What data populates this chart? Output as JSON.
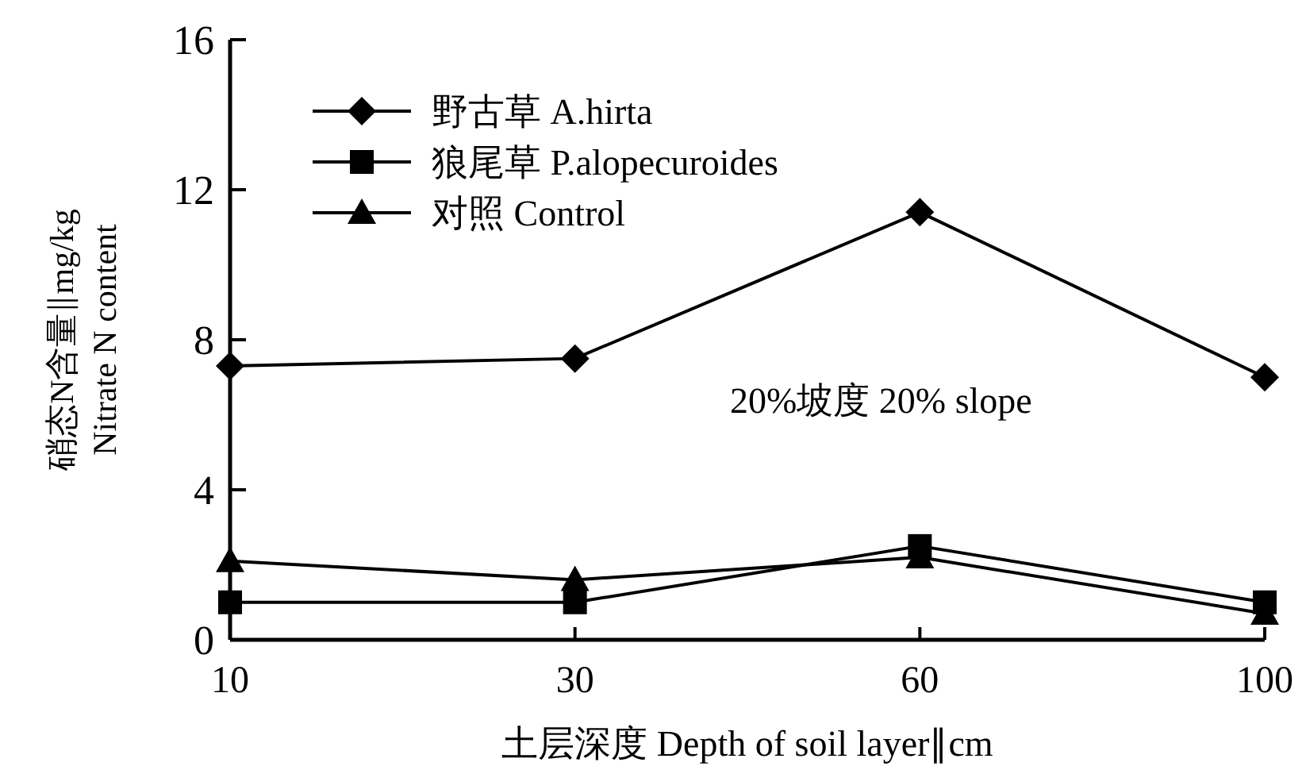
{
  "chart_data": {
    "type": "line",
    "xlabel": "土层深度 Depth of soil layer∥cm",
    "ylabel": [
      "硝态N含量∥mg/kg",
      "Nitrate N content"
    ],
    "categories": [
      "10",
      "30",
      "60",
      "100"
    ],
    "series": [
      {
        "name": "野古草 A.hirta",
        "color": "#000000",
        "marker": "diamond",
        "values": [
          7.3,
          7.5,
          11.4,
          7.0
        ]
      },
      {
        "name": "狼尾草 P.alopecuroides",
        "color": "#000000",
        "marker": "square",
        "values": [
          1.0,
          1.0,
          2.5,
          1.0
        ]
      },
      {
        "name": "对照  Control",
        "color": "#000000",
        "marker": "triangle",
        "values": [
          2.1,
          1.6,
          2.2,
          0.7
        ]
      }
    ],
    "ylim": [
      0,
      16
    ],
    "yticks": [
      0,
      4,
      8,
      12,
      16
    ],
    "grid": false,
    "legend": "top left",
    "line_style": "solid",
    "annotations": [
      "20%坡度  20% slope"
    ]
  }
}
